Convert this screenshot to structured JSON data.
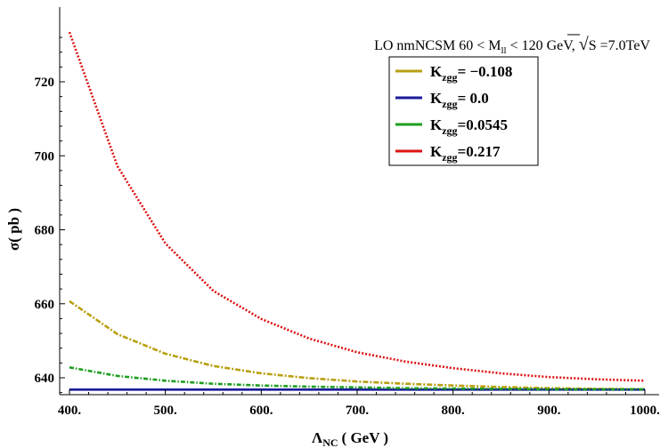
{
  "chart_data": {
    "type": "line",
    "annotation": {
      "prefix": "LO nmNCSM 60 < M",
      "sub": "ll",
      "mid": " < 120 GeV, ",
      "radical": "√",
      "radicand": "S",
      "suffix": " =7.0TeV"
    },
    "xlabel": {
      "main": "Λ",
      "sub": "NC",
      "rest": "( GeV )"
    },
    "ylabel": "σ( pb )",
    "xlim": [
      400,
      1000
    ],
    "ylim": [
      635,
      735
    ],
    "xticks": [
      {
        "value": 400,
        "label": "400."
      },
      {
        "value": 500,
        "label": "500."
      },
      {
        "value": 600,
        "label": "600."
      },
      {
        "value": 700,
        "label": "700."
      },
      {
        "value": 800,
        "label": "800."
      },
      {
        "value": 900,
        "label": "900."
      },
      {
        "value": 1000,
        "label": "1000."
      }
    ],
    "yticks": [
      {
        "value": 640,
        "label": "640"
      },
      {
        "value": 660,
        "label": "660"
      },
      {
        "value": 680,
        "label": "680"
      },
      {
        "value": 700,
        "label": "700"
      },
      {
        "value": 720,
        "label": "720"
      }
    ],
    "x": [
      400,
      450,
      500,
      550,
      600,
      650,
      700,
      750,
      800,
      850,
      900,
      950,
      1000
    ],
    "series": [
      {
        "name": "K_zgg = −0.108",
        "legend_base": "K",
        "legend_sub": "zgg",
        "legend_value": "= −0.108",
        "color": "#b8a010",
        "dash": "6,2,2,2",
        "values": [
          660.7,
          651.8,
          646.5,
          643.2,
          641.2,
          639.9,
          639.0,
          638.4,
          637.9,
          637.5,
          637.2,
          637.0,
          636.9
        ]
      },
      {
        "name": "K_zgg = 0.0",
        "legend_base": "K",
        "legend_sub": "zgg",
        "legend_value": "= 0.0",
        "color": "#1a1a9a",
        "dash": "",
        "values": [
          636.8,
          636.8,
          636.8,
          636.8,
          636.8,
          636.8,
          636.8,
          636.8,
          636.8,
          636.8,
          636.8,
          636.8,
          636.8
        ]
      },
      {
        "name": "K_zgg = 0.0545",
        "legend_base": "K",
        "legend_sub": "zgg",
        "legend_value": "=0.0545",
        "color": "#1e9e1e",
        "dash": "5,2,1.5,2",
        "values": [
          642.8,
          640.5,
          639.2,
          638.4,
          637.9,
          637.6,
          637.4,
          637.2,
          637.1,
          637.0,
          636.9,
          636.9,
          636.9
        ]
      },
      {
        "name": "K_zgg = 0.217",
        "legend_base": "K",
        "legend_sub": "zgg",
        "legend_value": "=0.217",
        "color": "#dd1111",
        "dash": "2,2",
        "values": [
          733.4,
          697.2,
          676.3,
          663.5,
          655.9,
          650.6,
          646.9,
          644.4,
          642.6,
          641.2,
          640.2,
          639.6,
          639.2
        ]
      }
    ]
  }
}
